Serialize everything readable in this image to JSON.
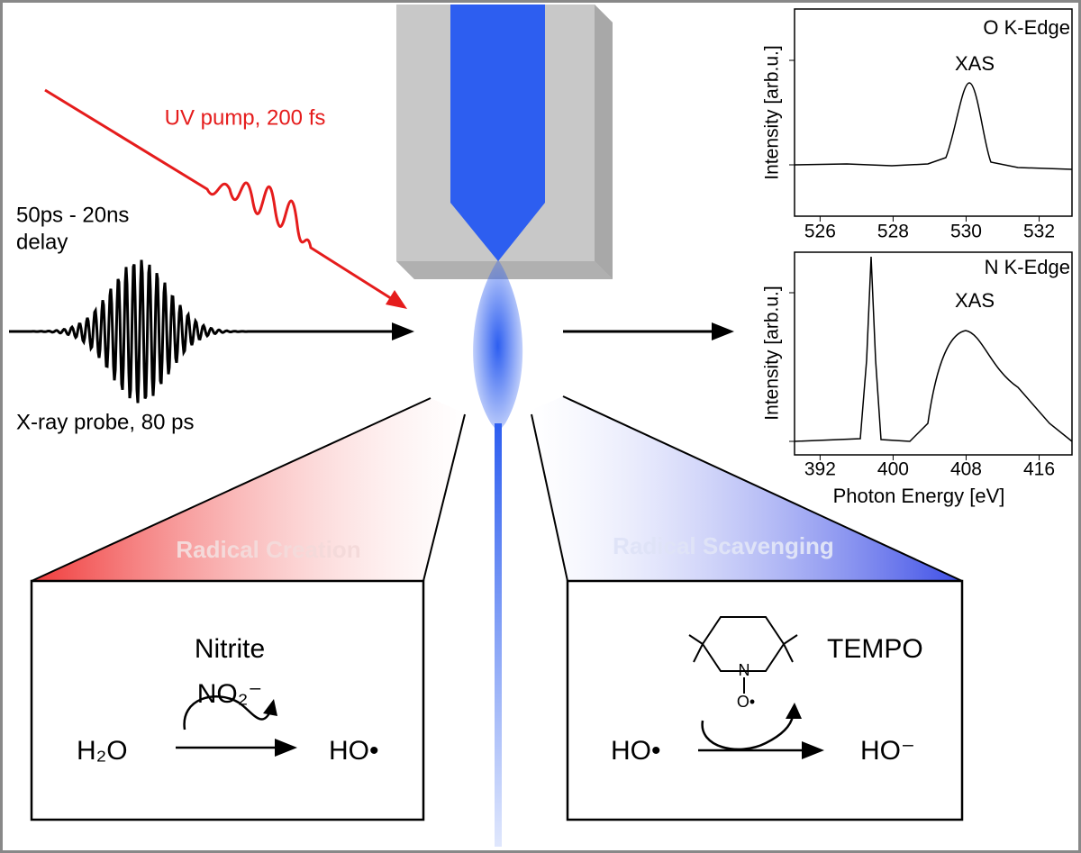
{
  "pump_label": "UV pump, 200 fs",
  "delay_label": [
    "50ps - 20ns",
    "delay"
  ],
  "probe_label": "X-ray probe, 80 ps",
  "creation": {
    "title": "Radical Creation",
    "catalyst": "Nitrite",
    "catalyst_formula": "NO₂⁻",
    "reactant": "H₂O",
    "product": "HO•"
  },
  "scavenging": {
    "title": "Radical Scavenging",
    "catalyst": "TEMPO",
    "n_atom": "N",
    "o_atom": "O•",
    "reactant": "HO•",
    "product": "HO⁻"
  },
  "spectra": [
    {
      "title": [
        "O K-Edge",
        "XAS"
      ],
      "ylabel": "Intensity [arb.u.]",
      "xticks": [
        526,
        528,
        530,
        532
      ]
    },
    {
      "title": [
        "N K-Edge",
        "XAS"
      ],
      "ylabel": "Intensity [arb.u.]",
      "xticks": [
        392,
        400,
        408,
        416
      ],
      "xlabel": "Photon Energy [eV]"
    }
  ]
}
